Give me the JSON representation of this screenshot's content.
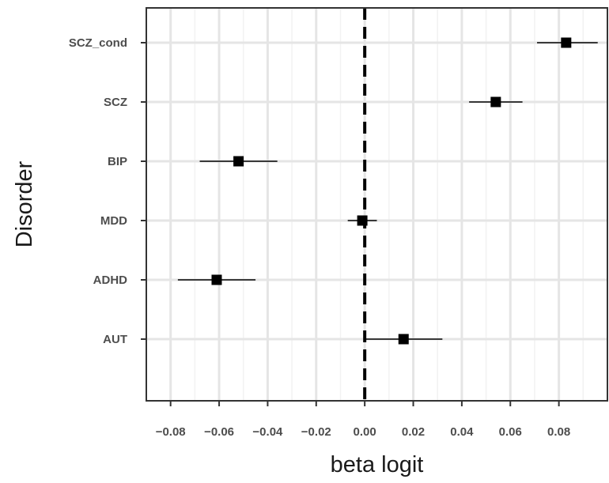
{
  "chart_data": {
    "type": "scatter",
    "subtype": "forest-plot",
    "title": "",
    "xlabel": "beta logit",
    "ylabel": "Disorder",
    "xlim": [
      -0.09,
      0.1
    ],
    "x_ticks": [
      -0.08,
      -0.06,
      -0.04,
      -0.02,
      0.0,
      0.02,
      0.04,
      0.06,
      0.08
    ],
    "x_tick_labels": [
      "−0.08",
      "−0.06",
      "−0.04",
      "−0.02",
      "0.00",
      "0.02",
      "0.04",
      "0.06",
      "0.08"
    ],
    "reference_line": 0.0,
    "grid": true,
    "categories": [
      "SCZ_cond",
      "SCZ",
      "BIP",
      "MDD",
      "ADHD",
      "AUT"
    ],
    "points": [
      {
        "label": "SCZ_cond",
        "estimate": 0.083,
        "ci_low": 0.071,
        "ci_high": 0.096
      },
      {
        "label": "SCZ",
        "estimate": 0.054,
        "ci_low": 0.043,
        "ci_high": 0.065
      },
      {
        "label": "BIP",
        "estimate": -0.052,
        "ci_low": -0.068,
        "ci_high": -0.036
      },
      {
        "label": "MDD",
        "estimate": -0.001,
        "ci_low": -0.007,
        "ci_high": 0.005
      },
      {
        "label": "ADHD",
        "estimate": -0.061,
        "ci_low": -0.077,
        "ci_high": -0.045
      },
      {
        "label": "AUT",
        "estimate": 0.016,
        "ci_low": 0.0,
        "ci_high": 0.032
      }
    ],
    "colors": {
      "point": "#000000",
      "grid_major": "#e5e5e5",
      "grid_minor": "#f2f2f2",
      "axis": "#333333",
      "reference": "#000000"
    }
  }
}
